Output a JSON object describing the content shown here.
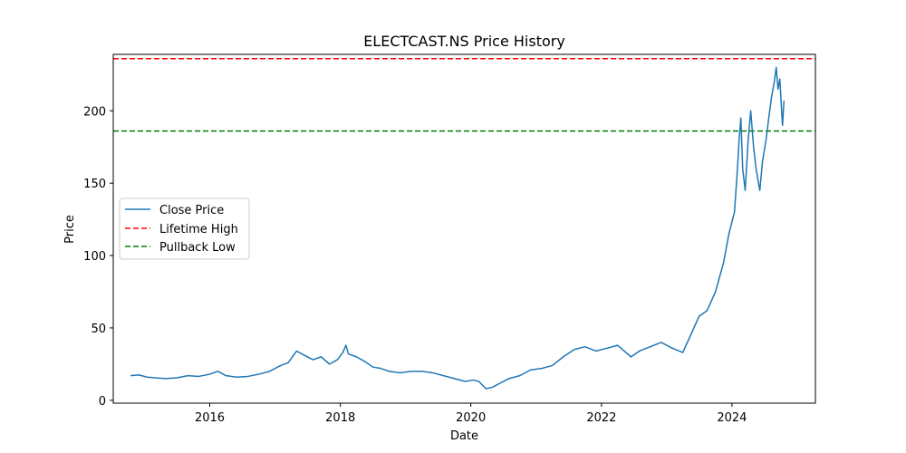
{
  "chart_data": {
    "type": "line",
    "title": "ELECTCAST.NS Price History",
    "xlabel": "Date",
    "ylabel": "Price",
    "xlim": [
      "2014-07-10",
      "2025-04-12"
    ],
    "ylim": [
      -2,
      239
    ],
    "x_ticks": [
      "2016",
      "2018",
      "2020",
      "2022",
      "2024"
    ],
    "y_ticks": [
      0,
      50,
      100,
      150,
      200
    ],
    "grid": false,
    "legend_position": "center-left",
    "series": [
      {
        "name": "Close Price",
        "color": "#1f77b4",
        "style": "solid",
        "points": [
          [
            "2014-10-15",
            17
          ],
          [
            "2014-12-01",
            17.5
          ],
          [
            "2015-01-15",
            16
          ],
          [
            "2015-03-01",
            15.5
          ],
          [
            "2015-05-01",
            15
          ],
          [
            "2015-07-01",
            15.5
          ],
          [
            "2015-09-01",
            17
          ],
          [
            "2015-11-01",
            16.5
          ],
          [
            "2016-01-01",
            18
          ],
          [
            "2016-02-15",
            20
          ],
          [
            "2016-04-01",
            17
          ],
          [
            "2016-06-01",
            16
          ],
          [
            "2016-08-01",
            16.5
          ],
          [
            "2016-10-01",
            18
          ],
          [
            "2016-12-01",
            20
          ],
          [
            "2017-02-01",
            24
          ],
          [
            "2017-03-15",
            26
          ],
          [
            "2017-05-01",
            34
          ],
          [
            "2017-06-15",
            31
          ],
          [
            "2017-08-01",
            28
          ],
          [
            "2017-09-15",
            30
          ],
          [
            "2017-11-01",
            25
          ],
          [
            "2017-12-15",
            28
          ],
          [
            "2018-01-15",
            33
          ],
          [
            "2018-02-01",
            38
          ],
          [
            "2018-02-15",
            32
          ],
          [
            "2018-04-01",
            30
          ],
          [
            "2018-05-15",
            27
          ],
          [
            "2018-07-01",
            23
          ],
          [
            "2018-08-15",
            22
          ],
          [
            "2018-10-01",
            20
          ],
          [
            "2018-12-01",
            19
          ],
          [
            "2019-02-01",
            20
          ],
          [
            "2019-04-01",
            20
          ],
          [
            "2019-06-01",
            19
          ],
          [
            "2019-08-01",
            17
          ],
          [
            "2019-10-01",
            15
          ],
          [
            "2019-12-01",
            13
          ],
          [
            "2020-01-15",
            14
          ],
          [
            "2020-02-15",
            13
          ],
          [
            "2020-03-25",
            8
          ],
          [
            "2020-05-01",
            9
          ],
          [
            "2020-06-15",
            12
          ],
          [
            "2020-08-01",
            15
          ],
          [
            "2020-10-01",
            17
          ],
          [
            "2020-12-01",
            21
          ],
          [
            "2021-02-01",
            22
          ],
          [
            "2021-04-01",
            24
          ],
          [
            "2021-06-01",
            30
          ],
          [
            "2021-08-01",
            35
          ],
          [
            "2021-10-01",
            37
          ],
          [
            "2021-12-01",
            34
          ],
          [
            "2022-02-01",
            36
          ],
          [
            "2022-04-01",
            38
          ],
          [
            "2022-06-15",
            30
          ],
          [
            "2022-08-01",
            34
          ],
          [
            "2022-10-01",
            37
          ],
          [
            "2022-12-01",
            40
          ],
          [
            "2023-02-01",
            36
          ],
          [
            "2023-04-01",
            33
          ],
          [
            "2023-05-15",
            45
          ],
          [
            "2023-07-01",
            58
          ],
          [
            "2023-08-15",
            62
          ],
          [
            "2023-10-01",
            75
          ],
          [
            "2023-11-15",
            95
          ],
          [
            "2023-12-15",
            115
          ],
          [
            "2024-01-15",
            130
          ],
          [
            "2024-02-01",
            160
          ],
          [
            "2024-02-10",
            180
          ],
          [
            "2024-02-20",
            195
          ],
          [
            "2024-03-01",
            160
          ],
          [
            "2024-03-15",
            145
          ],
          [
            "2024-04-01",
            180
          ],
          [
            "2024-04-15",
            200
          ],
          [
            "2024-05-01",
            175
          ],
          [
            "2024-05-15",
            160
          ],
          [
            "2024-06-05",
            145
          ],
          [
            "2024-06-20",
            165
          ],
          [
            "2024-07-10",
            180
          ],
          [
            "2024-07-25",
            195
          ],
          [
            "2024-08-10",
            210
          ],
          [
            "2024-08-25",
            220
          ],
          [
            "2024-09-05",
            230
          ],
          [
            "2024-09-15",
            215
          ],
          [
            "2024-09-25",
            222
          ],
          [
            "2024-10-05",
            200
          ],
          [
            "2024-10-10",
            190
          ],
          [
            "2024-10-18",
            207
          ]
        ]
      },
      {
        "name": "Lifetime High",
        "color": "#ff0000",
        "style": "dashed",
        "y": 236
      },
      {
        "name": "Pullback Low",
        "color": "#008000",
        "style": "dashed",
        "y": 186
      }
    ]
  }
}
